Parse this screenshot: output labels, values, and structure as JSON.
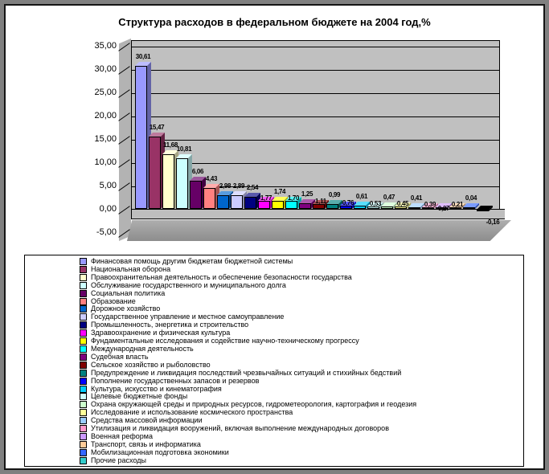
{
  "frame": {
    "outer_background": "#808080",
    "page_background": "#FFFFFF",
    "border_color": "#151515"
  },
  "chart_data": {
    "type": "bar",
    "style": "excel-3d-column",
    "title": "Структура расходов в федеральном бюджете на 2004 год,%",
    "xlabel": "",
    "ylabel": "",
    "ylim": [
      -5,
      35
    ],
    "ytick_step": 5,
    "ytick_labels": [
      "35,00",
      "30,00",
      "25,00",
      "20,00",
      "15,00",
      "10,00",
      "5,00",
      "0,00",
      "-5,00"
    ],
    "grid": true,
    "wall_color": "#C0C0C0",
    "legend_position": "bottom",
    "negative_display_color": "#0A0A0A",
    "categories": [
      "Финансовая помощь другим бюджетам бюджетной системы",
      "Национальная оборона",
      "Правоохранительная деятельность и обеспечение безопасности государства",
      "Обслуживание государственного и муниципального долга",
      "Социальная политика",
      "Образование",
      "Дорожное хозяйство",
      "Государственное управление и местное самоуправление",
      "Промышленность, энергетика и строительство",
      "Здравоохранение и физическая культура",
      "Фундаментальные исследования и содействие научно-техническому прогрессу",
      "Международная деятельность",
      "Судебная власть",
      "Сельское хозяйство и рыболовство",
      "Предупреждение и ликвидация последствий чрезвычайных ситуаций и стихийных бедствий",
      "Пополнение государственных запасов и резервов",
      "Культура, искусство и кинематография",
      "Целевые бюджетные фонды",
      "Охрана окружающей среды и природных ресурсов, гидрометеорология, картография и геодезия",
      "Исследование и использование космического пространства",
      "Средства массовой информации",
      "Утилизация и ликвидация вооружений, включая выполнение международных договоров",
      "Военная реформа",
      "Транспорт, связь и информатика",
      "Мобилизационная подготовка экономики",
      "Прочие расходы"
    ],
    "values": [
      30.61,
      15.47,
      11.68,
      10.81,
      6.06,
      4.43,
      2.98,
      2.89,
      2.54,
      1.77,
      1.74,
      1.7,
      1.25,
      1.11,
      0.99,
      0.76,
      0.61,
      0.53,
      0.47,
      0.45,
      0.41,
      0.39,
      0.27,
      0.21,
      0.04,
      -0.16
    ],
    "value_labels": [
      "30,61",
      "15,47",
      "11,68",
      "10,81",
      "6,06",
      "4,43",
      "2,98",
      "2,89",
      "2,54",
      "1,77",
      "1,74",
      "1,70",
      "1,25",
      "1,11",
      "0,99",
      "0,76",
      "0,61",
      "0,53",
      "0,47",
      "0,45",
      "0,41",
      "0,39",
      "0,27",
      "0,21",
      "0,04",
      "-0,16"
    ],
    "colors": [
      "#9999FF",
      "#993366",
      "#FFFFCC",
      "#CCFFFF",
      "#660066",
      "#FF8080",
      "#0066CC",
      "#CCCCFF",
      "#000080",
      "#FF00FF",
      "#FFFF00",
      "#00FFFF",
      "#800080",
      "#800000",
      "#008080",
      "#0000FF",
      "#00CCFF",
      "#CCFFFF",
      "#CCFFCC",
      "#FFFF99",
      "#99CCFF",
      "#FF99CC",
      "#CC99FF",
      "#FFCC99",
      "#3366FF",
      "#33CCCC"
    ]
  }
}
